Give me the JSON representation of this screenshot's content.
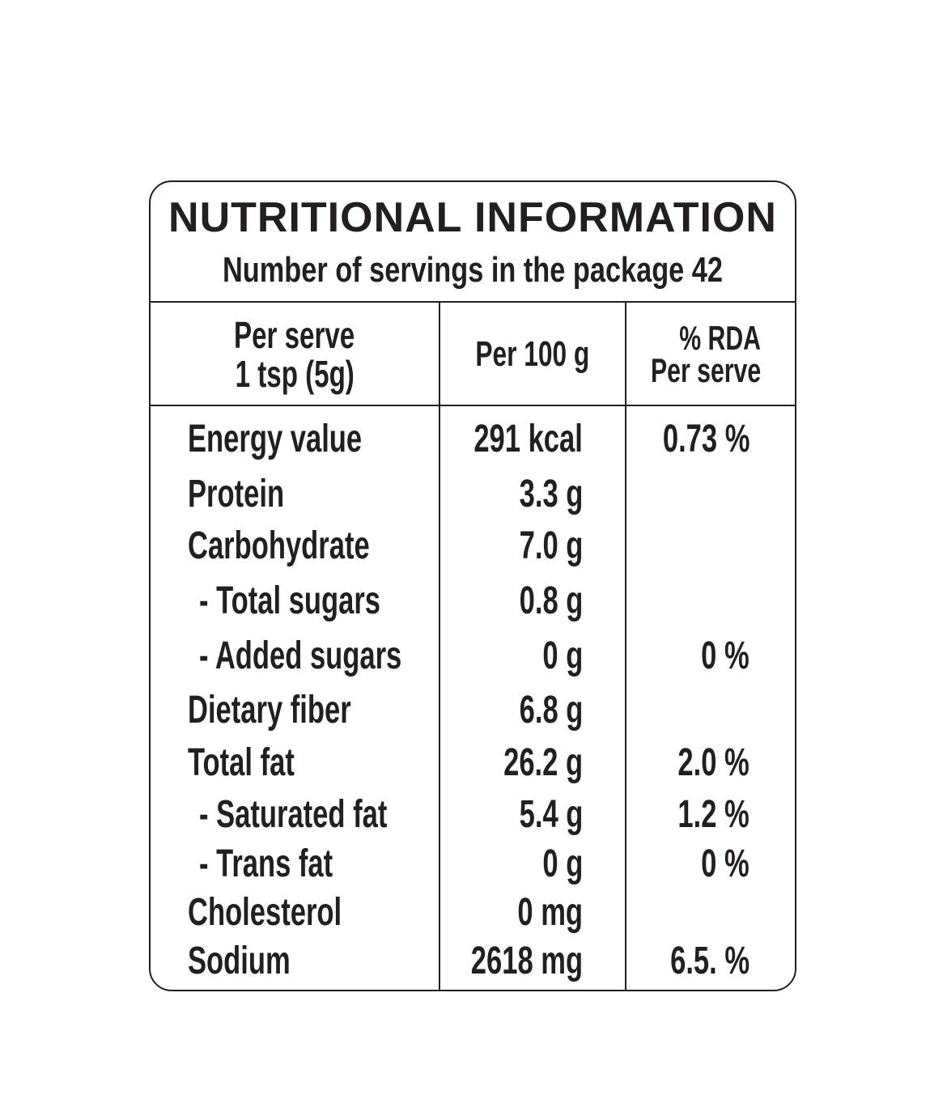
{
  "label": {
    "title": "NUTRITIONAL INFORMATION",
    "servings": "Number of servings in the package 42",
    "headers": {
      "col1_line1": "Per serve",
      "col1_line2": "1 tsp (5g)",
      "col2": "Per 100 g",
      "col3_line1": "% RDA",
      "col3_line2": "Per serve"
    },
    "rows": [
      {
        "name": "Energy value",
        "per100": "291 kcal",
        "rda": "0.73 %"
      },
      {
        "name": "Protein",
        "per100": "3.3 g",
        "rda": ""
      },
      {
        "name": "Carbohydrate",
        "per100": "7.0 g",
        "rda": ""
      },
      {
        "name": "- Total sugars",
        "per100": "0.8 g",
        "rda": ""
      },
      {
        "name": "- Added sugars",
        "per100": "0 g",
        "rda": "0 %"
      },
      {
        "name": "Dietary fiber",
        "per100": "6.8 g",
        "rda": ""
      },
      {
        "name": "Total fat",
        "per100": "26.2 g",
        "rda": "2.0 %"
      },
      {
        "name": "- Saturated fat",
        "per100": "5.4 g",
        "rda": "1.2 %"
      },
      {
        "name": "- Trans fat",
        "per100": "0 g",
        "rda": "0 %"
      },
      {
        "name": "Cholesterol",
        "per100": "0 mg",
        "rda": ""
      },
      {
        "name": "Sodium",
        "per100": "2618 mg",
        "rda": "6.5. %"
      }
    ]
  }
}
